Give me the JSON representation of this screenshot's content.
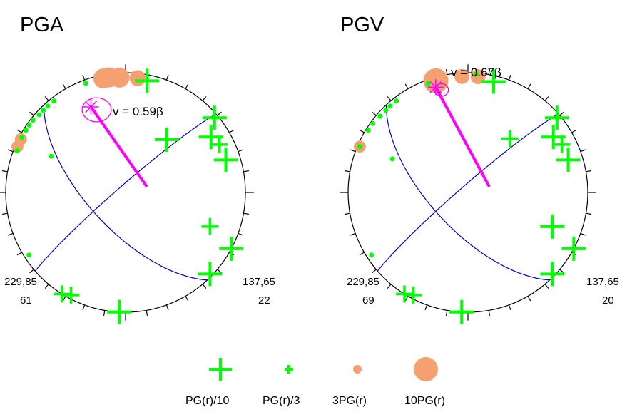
{
  "chart_data": [
    {
      "type": "stereonet",
      "title": "PGA",
      "velocity_label": "v = 0.59β",
      "left_label": {
        "line1": "229,85",
        "line2": "61"
      },
      "right_label": {
        "line1": "137,65",
        "line2": "22"
      },
      "colors": {
        "cross": "#00ff00",
        "dot": "#00ff00",
        "disc": "#f4a070",
        "plane": "#0000cc",
        "vector": "#ff00ff"
      },
      "crosses": [
        {
          "az": 11,
          "r": 0.95,
          "size": "large"
        },
        {
          "az": 50,
          "r": 0.97,
          "size": "large"
        },
        {
          "az": 57,
          "r": 0.85,
          "size": "large"
        },
        {
          "az": 63,
          "r": 0.88,
          "size": "medium"
        },
        {
          "az": 72,
          "r": 0.88,
          "size": "large"
        },
        {
          "az": 38,
          "r": 0.56,
          "size": "large"
        },
        {
          "az": 112,
          "r": 0.76,
          "size": "medium"
        },
        {
          "az": 118,
          "r": 1.0,
          "size": "large"
        },
        {
          "az": 134,
          "r": 0.98,
          "size": "large"
        },
        {
          "az": 212,
          "r": 1.0,
          "size": "medium"
        },
        {
          "az": 208,
          "r": 0.97,
          "size": "medium"
        },
        {
          "az": 183,
          "r": 1.0,
          "size": "large"
        }
      ],
      "dots": [
        {
          "az": 340,
          "r": 0.97
        },
        {
          "az": 322,
          "r": 0.97
        },
        {
          "az": 318,
          "r": 0.97
        },
        {
          "az": 315,
          "r": 0.97
        },
        {
          "az": 312,
          "r": 0.97
        },
        {
          "az": 308,
          "r": 0.98
        },
        {
          "az": 305,
          "r": 0.98
        },
        {
          "az": 302,
          "r": 0.98
        },
        {
          "az": 298,
          "r": 0.98
        },
        {
          "az": 291,
          "r": 0.97
        },
        {
          "az": 296,
          "r": 0.69
        },
        {
          "az": 237,
          "r": 0.96
        }
      ],
      "discs": [
        {
          "az": 357,
          "r": 0.96,
          "size": 1.0
        },
        {
          "az": 352,
          "r": 0.97,
          "size": 1.0
        },
        {
          "az": 349,
          "r": 0.97,
          "size": 1.0
        },
        {
          "az": 6,
          "r": 0.96,
          "size": 0.8
        },
        {
          "az": 293,
          "r": 0.98,
          "size": 0.6
        },
        {
          "az": 297,
          "r": 0.98,
          "size": 0.6
        }
      ],
      "planes": [
        {
          "az": 229,
          "dip": 85
        },
        {
          "az": 137,
          "dip": 65
        }
      ],
      "vector": {
        "az": 338,
        "r": 0.77
      },
      "ellipse": {
        "rx": 0.27,
        "ry": 0.25
      }
    },
    {
      "type": "stereonet",
      "title": "PGV",
      "velocity_label": "v = 0.67β",
      "left_label": {
        "line1": "229,85",
        "line2": "69"
      },
      "right_label": {
        "line1": "137,65",
        "line2": "20"
      },
      "colors": {
        "cross": "#00ff00",
        "dot": "#00ff00",
        "disc": "#f4a070",
        "plane": "#0000cc",
        "vector": "#ff00ff"
      },
      "crosses": [
        {
          "az": 13,
          "r": 0.95,
          "size": "large"
        },
        {
          "az": 50,
          "r": 0.97,
          "size": "large"
        },
        {
          "az": 57,
          "r": 0.85,
          "size": "large"
        },
        {
          "az": 63,
          "r": 0.88,
          "size": "medium"
        },
        {
          "az": 72,
          "r": 0.88,
          "size": "large"
        },
        {
          "az": 38,
          "r": 0.57,
          "size": "medium"
        },
        {
          "az": 112,
          "r": 0.76,
          "size": "large"
        },
        {
          "az": 118,
          "r": 1.0,
          "size": "large"
        },
        {
          "az": 134,
          "r": 0.98,
          "size": "large"
        },
        {
          "az": 212,
          "r": 1.0,
          "size": "medium"
        },
        {
          "az": 208,
          "r": 0.97,
          "size": "medium"
        },
        {
          "az": 183,
          "r": 1.0,
          "size": "large"
        }
      ],
      "dots": [
        {
          "az": 340,
          "r": 0.97
        },
        {
          "az": 322,
          "r": 0.97
        },
        {
          "az": 318,
          "r": 0.97
        },
        {
          "az": 315,
          "r": 0.97
        },
        {
          "az": 311,
          "r": 0.97
        },
        {
          "az": 306,
          "r": 0.98
        },
        {
          "az": 302,
          "r": 0.98
        },
        {
          "az": 293,
          "r": 0.98
        },
        {
          "az": 294,
          "r": 0.69
        },
        {
          "az": 237,
          "r": 0.96
        },
        {
          "az": 4,
          "r": 0.99
        }
      ],
      "discs": [
        {
          "az": 344,
          "r": 0.97,
          "size": 1.25
        },
        {
          "az": 357,
          "r": 0.97,
          "size": 0.75
        },
        {
          "az": 5,
          "r": 0.97,
          "size": 0.75
        },
        {
          "az": 293,
          "r": 0.98,
          "size": 0.6
        }
      ],
      "planes": [
        {
          "az": 229,
          "dip": 85
        },
        {
          "az": 137,
          "dip": 65
        }
      ],
      "vector": {
        "az": 343,
        "r": 0.92
      },
      "ellipse": {
        "rx": 0.13,
        "ry": 0.13
      }
    }
  ],
  "legend": {
    "items": [
      {
        "label": "PG(r)/10",
        "symbol": "cross-large"
      },
      {
        "label": "PG(r)/3",
        "symbol": "cross-small"
      },
      {
        "label": "3PG(r)",
        "symbol": "disc-small"
      },
      {
        "label": "10PG(r)",
        "symbol": "disc-large"
      }
    ]
  }
}
